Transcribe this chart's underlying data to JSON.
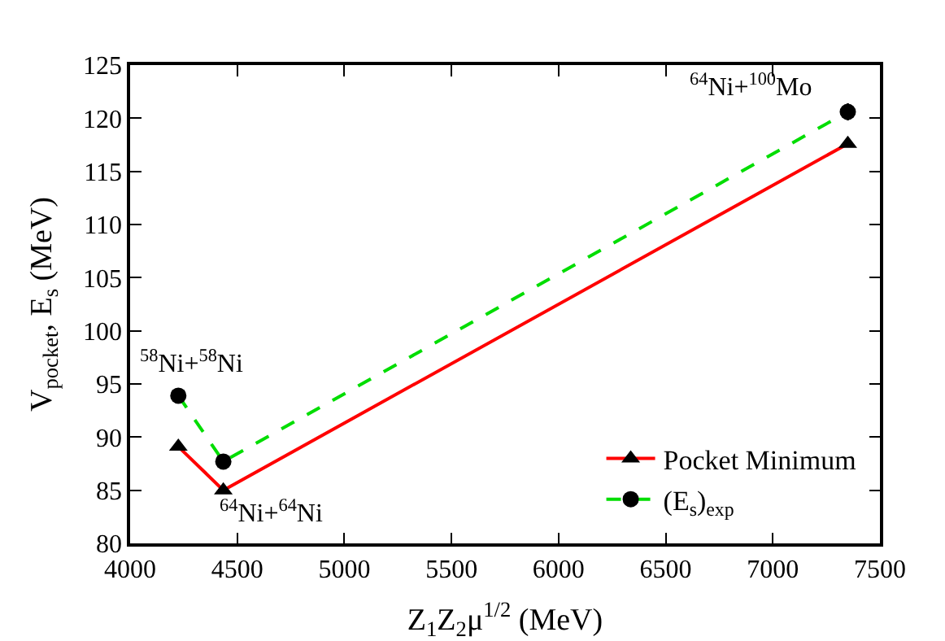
{
  "chart_data": {
    "type": "line",
    "xlabel": "Z$_{1}$Z$_{2}$μ$^{1/2}$ (MeV)",
    "ylabel": "V$_{pocket}$, E$_{s}$ (MeV)",
    "x": [
      4225,
      4435,
      7350
    ],
    "series": [
      {
        "name": "Pocket Minimum",
        "color": "#ff0000",
        "values": [
          89.1,
          85.0,
          117.6
        ],
        "marker": "triangle",
        "line_style": "solid"
      },
      {
        "name": "(E$_{s}$)$_{exp}$",
        "color": "#00dd00",
        "values": [
          93.9,
          87.7,
          120.6
        ],
        "errors": [
          0.6,
          0.6,
          0.8
        ],
        "marker": "circle",
        "line_style": "dashed"
      }
    ],
    "xlim": [
      4000,
      7500
    ],
    "xticks": [
      4000,
      4500,
      5000,
      5500,
      6000,
      6500,
      7000,
      7500
    ],
    "ylim": [
      80,
      125
    ],
    "yticks": [
      80,
      85,
      90,
      95,
      100,
      105,
      110,
      115,
      120,
      125
    ],
    "grid": false,
    "legend": "bottom right",
    "annotations": [
      {
        "text": "$^{58}$Ni+$^{58}$Ni",
        "x": 4225,
        "y": 93.9
      },
      {
        "text": "$^{64}$Ni+$^{64}$Ni",
        "x": 4435,
        "y": 85.0
      },
      {
        "text": "$^{64}$Ni+$^{100}$Mo",
        "x": 7350,
        "y": 120.6
      }
    ]
  }
}
